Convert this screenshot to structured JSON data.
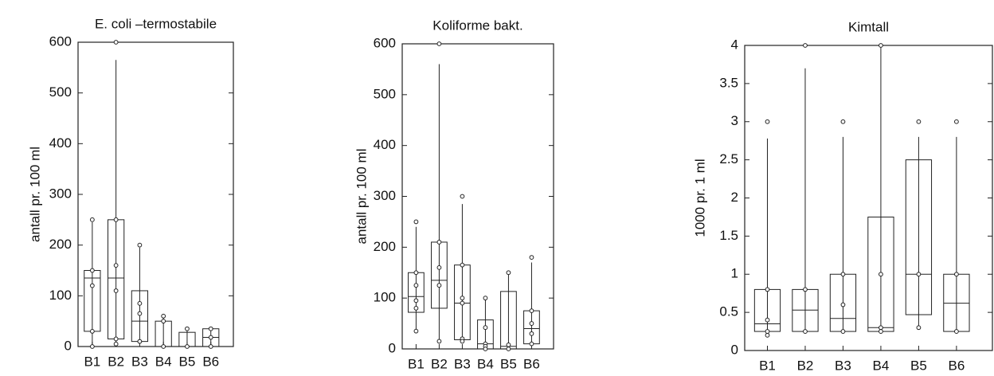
{
  "chart_data": [
    {
      "type": "box",
      "title": "E. coli –termostabile",
      "y_label": "antall pr. 100 ml",
      "ylim": [
        0,
        600
      ],
      "yticks": [
        0,
        100,
        200,
        300,
        400,
        500,
        600
      ],
      "categories": [
        "B1",
        "B2",
        "B3",
        "B4",
        "B5",
        "B6"
      ],
      "boxes": [
        {
          "min": 0,
          "q1": 30,
          "median": 135,
          "q3": 150,
          "max": 245,
          "points": [
            250,
            150,
            120,
            30,
            0
          ]
        },
        {
          "min": 5,
          "q1": 15,
          "median": 135,
          "q3": 250,
          "max": 565,
          "points": [
            600,
            250,
            160,
            110,
            15,
            5
          ]
        },
        {
          "min": 5,
          "q1": 10,
          "median": 50,
          "q3": 110,
          "max": 195,
          "points": [
            200,
            85,
            65,
            10,
            10
          ]
        },
        {
          "min": 0,
          "q1": 0,
          "median": 0,
          "q3": 50,
          "max": 60,
          "points": [
            60,
            50,
            0
          ]
        },
        {
          "min": 0,
          "q1": 0,
          "median": 0,
          "q3": 28,
          "max": 35,
          "points": [
            35,
            0
          ]
        },
        {
          "min": 0,
          "q1": 0,
          "median": 18,
          "q3": 35,
          "max": 35,
          "points": [
            35,
            18,
            0
          ]
        }
      ]
    },
    {
      "type": "box",
      "title": "Koliforme bakt.",
      "y_label": "antall pr. 100 ml",
      "ylim": [
        0,
        600
      ],
      "yticks": [
        0,
        100,
        200,
        300,
        400,
        500,
        600
      ],
      "categories": [
        "B1",
        "B2",
        "B3",
        "B4",
        "B5",
        "B6"
      ],
      "boxes": [
        {
          "min": 35,
          "q1": 72,
          "median": 103,
          "q3": 150,
          "max": 240,
          "points": [
            250,
            150,
            125,
            95,
            80,
            35
          ]
        },
        {
          "min": 15,
          "q1": 80,
          "median": 135,
          "q3": 210,
          "max": 560,
          "points": [
            600,
            210,
            160,
            125,
            15
          ]
        },
        {
          "min": 15,
          "q1": 18,
          "median": 90,
          "q3": 165,
          "max": 285,
          "points": [
            300,
            165,
            100,
            90,
            20,
            15
          ]
        },
        {
          "min": 0,
          "q1": 0,
          "median": 10,
          "q3": 57,
          "max": 98,
          "points": [
            100,
            42,
            10,
            5,
            0
          ]
        },
        {
          "min": 0,
          "q1": 0,
          "median": 5,
          "q3": 113,
          "max": 148,
          "points": [
            150,
            8,
            0
          ]
        },
        {
          "min": 5,
          "q1": 10,
          "median": 40,
          "q3": 75,
          "max": 170,
          "points": [
            180,
            75,
            50,
            30,
            10
          ]
        }
      ]
    },
    {
      "type": "box",
      "title": "Kimtall",
      "y_label": "1000 pr. 1 ml",
      "ylim": [
        0,
        4
      ],
      "yticks": [
        0,
        0.5,
        1,
        1.5,
        2,
        2.5,
        3,
        3.5,
        4
      ],
      "categories": [
        "B1",
        "B2",
        "B3",
        "B4",
        "B5",
        "B6"
      ],
      "boxes": [
        {
          "min": 0.2,
          "q1": 0.25,
          "median": 0.35,
          "q3": 0.8,
          "max": 2.78,
          "points": [
            3,
            0.8,
            0.4,
            0.25,
            0.2
          ]
        },
        {
          "min": 0.25,
          "q1": 0.25,
          "median": 0.53,
          "q3": 0.8,
          "max": 3.7,
          "points": [
            4,
            0.8,
            0.25
          ]
        },
        {
          "min": 0.25,
          "q1": 0.25,
          "median": 0.42,
          "q3": 1,
          "max": 2.8,
          "points": [
            3,
            1,
            0.6,
            0.25
          ]
        },
        {
          "min": 0.25,
          "q1": 0.25,
          "median": 0.3,
          "q3": 1.75,
          "max": 4,
          "points": [
            4,
            1,
            0.3,
            0.25
          ]
        },
        {
          "min": 0.3,
          "q1": 0.47,
          "median": 1,
          "q3": 2.5,
          "max": 2.8,
          "points": [
            3,
            1,
            0.3
          ]
        },
        {
          "min": 0.25,
          "q1": 0.25,
          "median": 0.62,
          "q3": 1,
          "max": 2.8,
          "points": [
            3,
            1,
            0.25
          ]
        }
      ]
    }
  ]
}
